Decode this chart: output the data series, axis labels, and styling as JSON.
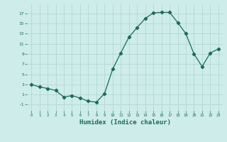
{
  "x": [
    0,
    1,
    2,
    3,
    4,
    5,
    6,
    7,
    8,
    9,
    10,
    11,
    12,
    13,
    14,
    15,
    16,
    17,
    18,
    19,
    20,
    21,
    22,
    23
  ],
  "y": [
    3,
    2.5,
    2.2,
    1.8,
    0.5,
    0.8,
    0.3,
    -0.3,
    -0.5,
    1.2,
    6,
    9.2,
    12.3,
    14.2,
    16.0,
    17.1,
    17.2,
    17.2,
    15.2,
    13.0,
    9.0,
    6.5,
    9.2,
    10.0
  ],
  "line_color": "#1a6b5a",
  "marker": "D",
  "markersize": 2.2,
  "bg_color": "#cdecea",
  "grid_color": "#b0d4d0",
  "xlabel": "Humidex (Indice chaleur)",
  "xlabel_fontsize": 6.5,
  "yticks": [
    -1,
    1,
    3,
    5,
    7,
    9,
    11,
    13,
    15,
    17
  ],
  "xticks": [
    0,
    1,
    2,
    3,
    4,
    5,
    6,
    7,
    8,
    9,
    10,
    11,
    12,
    13,
    14,
    15,
    16,
    17,
    18,
    19,
    20,
    21,
    22,
    23
  ],
  "ylim": [
    -2.2,
    18.8
  ],
  "xlim": [
    -0.5,
    23.5
  ]
}
